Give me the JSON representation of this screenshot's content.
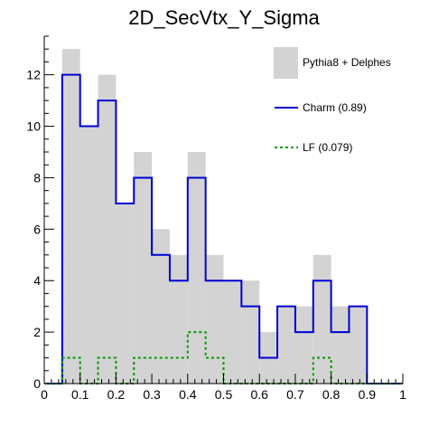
{
  "chart_data": {
    "type": "bar",
    "title": "2D_SecVtx_Y_Sigma",
    "xlabel": "",
    "ylabel": "",
    "xlim": [
      0,
      1
    ],
    "ylim": [
      0,
      13.5
    ],
    "bin_edges": [
      0,
      0.05,
      0.1,
      0.15,
      0.2,
      0.25,
      0.3,
      0.35,
      0.4,
      0.45,
      0.5,
      0.55,
      0.6,
      0.65,
      0.7,
      0.75,
      0.8,
      0.85,
      0.9,
      0.95,
      1.0
    ],
    "x_ticks": [
      0,
      0.1,
      0.2,
      0.3,
      0.4,
      0.5,
      0.6,
      0.7,
      0.8,
      0.9,
      1.0
    ],
    "x_tick_labels": [
      "0",
      "0.1",
      "0.2",
      "0.3",
      "0.4",
      "0.5",
      "0.6",
      "0.7",
      "0.8",
      "0.9",
      "1"
    ],
    "y_ticks": [
      0,
      2,
      4,
      6,
      8,
      10,
      12
    ],
    "y_tick_labels": [
      "0",
      "2",
      "4",
      "6",
      "8",
      "10",
      "12"
    ],
    "grid": false,
    "legend_position": "top-right",
    "series": [
      {
        "name": "Pythia8 + Delphes",
        "style": "filled",
        "color": "#d3d3d3",
        "values": [
          0,
          13,
          10,
          12,
          7,
          9,
          6,
          5,
          9,
          5,
          4,
          4,
          2,
          3,
          3,
          5,
          3,
          3,
          0,
          0
        ]
      },
      {
        "name": "Charm (0.89)",
        "style": "step-solid",
        "color": "#0000d6",
        "values": [
          0,
          12,
          10,
          11,
          7,
          8,
          5,
          4,
          8,
          4,
          4,
          3,
          1,
          3,
          2,
          4,
          2,
          3,
          0,
          0
        ]
      },
      {
        "name": "LF (0.079)",
        "style": "step-dashed",
        "color": "#009900",
        "values": [
          0,
          1,
          0,
          1,
          0,
          1,
          1,
          1,
          2,
          1,
          0,
          0,
          0,
          0,
          0,
          1,
          0,
          0,
          0,
          0
        ]
      }
    ]
  }
}
